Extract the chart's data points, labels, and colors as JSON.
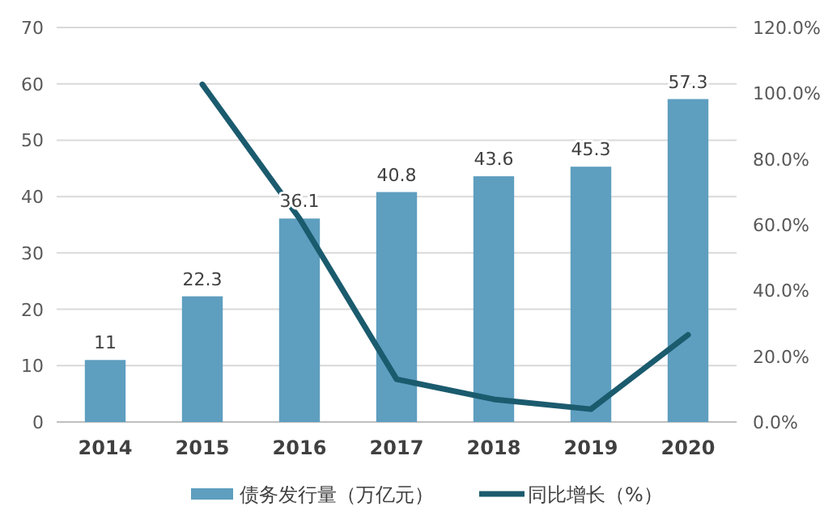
{
  "chart_data": {
    "type": "bar",
    "categories": [
      "2014",
      "2015",
      "2016",
      "2017",
      "2018",
      "2019",
      "2020"
    ],
    "series": [
      {
        "name": "债务发行量（万亿元）",
        "color": "#5e9ebf",
        "values": [
          11,
          22.3,
          36.1,
          40.8,
          43.6,
          45.3,
          57.3
        ],
        "value_labels": [
          "11",
          "22.3",
          "36.1",
          "40.8",
          "43.6",
          "45.3",
          "57.3"
        ]
      },
      {
        "name": "同比增长（%）",
        "type": "line",
        "axis": "y2",
        "color": "#1b5b6e",
        "values": [
          null,
          102.7,
          61.9,
          13.0,
          6.9,
          3.9,
          26.5
        ]
      }
    ],
    "ylim": [
      0,
      70
    ],
    "yticks": [
      0,
      10,
      20,
      30,
      40,
      50,
      60,
      70
    ],
    "y2lim": [
      0,
      120
    ],
    "y2ticks": [
      {
        "value": 0,
        "label": "0.0%"
      },
      {
        "value": 20,
        "label": "20.0%"
      },
      {
        "value": 40,
        "label": "40.0%"
      },
      {
        "value": 60,
        "label": "60.0%"
      },
      {
        "value": 80,
        "label": "80.0%"
      },
      {
        "value": 100,
        "label": "100.0%"
      },
      {
        "value": 120,
        "label": "120.0%"
      }
    ],
    "grid": "y",
    "legend": "bottom",
    "marker": "none"
  }
}
